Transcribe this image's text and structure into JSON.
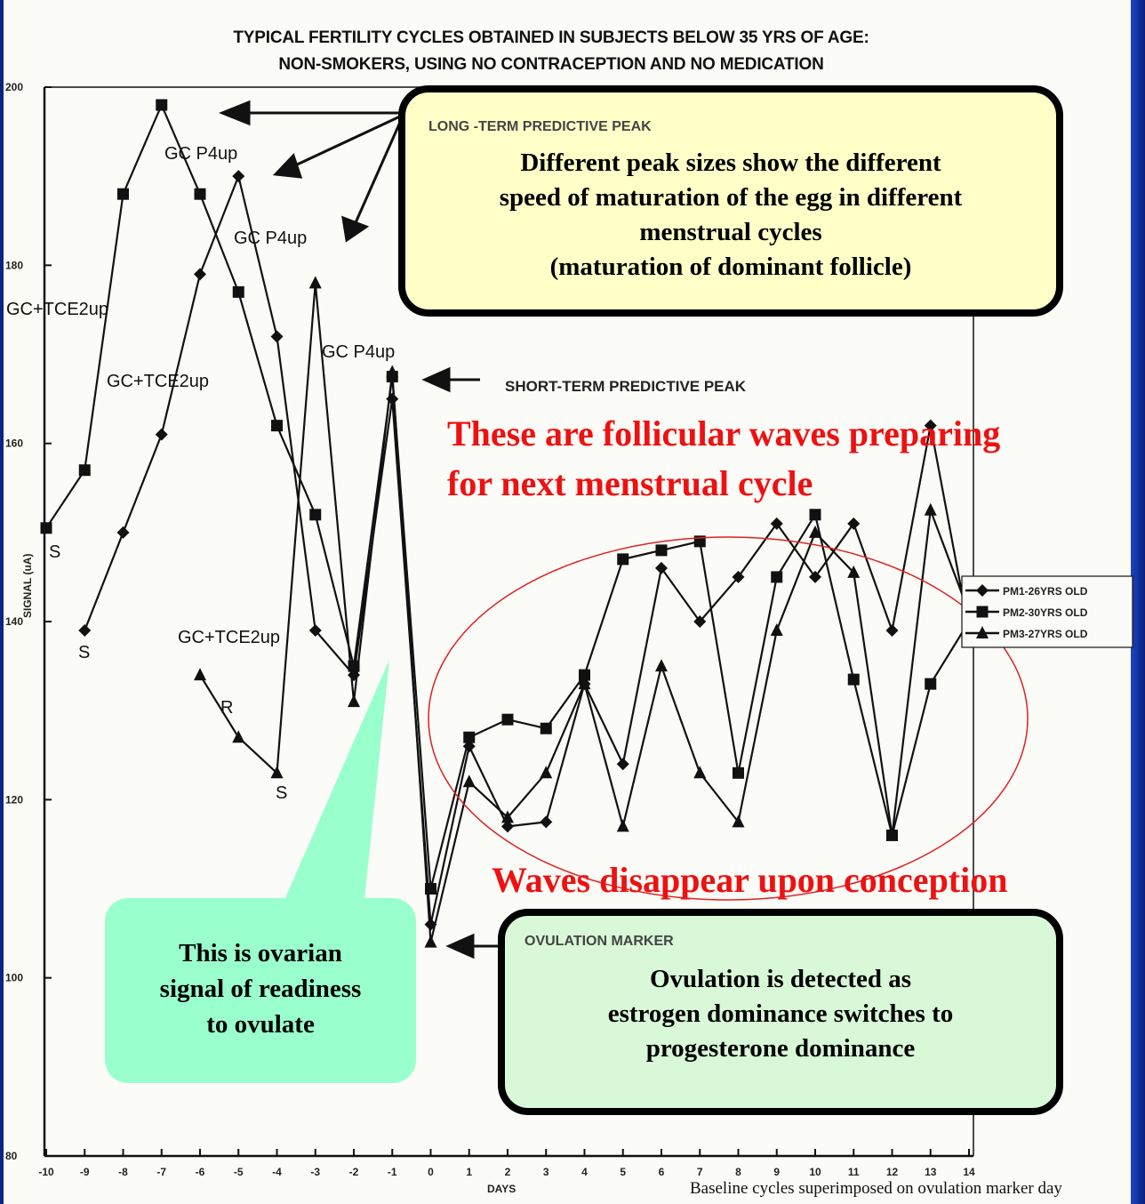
{
  "chart_data": {
    "type": "line",
    "title": "TYPICAL FERTILITY CYCLES OBTAINED IN SUBJECTS BELOW 35 YRS OF AGE:",
    "subtitle": "NON-SMOKERS, USING NO CONTRACEPTION AND NO MEDICATION",
    "xlabel": "DAYS",
    "ylabel": "SIGNAL (uA)",
    "xlim": [
      -10,
      14
    ],
    "ylim": [
      80,
      200
    ],
    "x_ticks": [
      -10,
      -9,
      -8,
      -7,
      -6,
      -5,
      -4,
      -3,
      -2,
      -1,
      0,
      1,
      2,
      3,
      4,
      5,
      6,
      7,
      8,
      9,
      10,
      11,
      12,
      13,
      14
    ],
    "y_ticks": [
      80,
      100,
      120,
      140,
      160,
      180,
      200
    ],
    "legend_position": "right",
    "series": [
      {
        "name": "PM1-26YRS OLD",
        "marker": "diamond",
        "x": [
          -9,
          -8,
          -7,
          -6,
          -5,
          -4,
          -3,
          -2,
          -1,
          0,
          1,
          2,
          3,
          4,
          5,
          6,
          7,
          8,
          9,
          10,
          11,
          12,
          13,
          14
        ],
        "values": [
          139,
          150,
          161,
          179,
          190,
          172,
          139,
          134,
          165,
          106,
          126,
          117,
          117.5,
          133,
          124,
          146,
          140,
          145,
          151,
          145,
          151,
          139,
          162,
          139
        ]
      },
      {
        "name": "PM2-30YRS OLD",
        "marker": "square",
        "x": [
          -10,
          -9,
          -8,
          -7,
          -6,
          -5,
          -4,
          -3,
          -2,
          -1,
          0,
          1,
          2,
          3,
          4,
          5,
          6,
          7,
          8,
          9,
          10,
          11,
          12,
          13,
          14
        ],
        "values": [
          150.5,
          157,
          188,
          198,
          188,
          177,
          162,
          152,
          135,
          167.5,
          110,
          127,
          129,
          128,
          134,
          147,
          148,
          149,
          123,
          145,
          152,
          133.5,
          116,
          133,
          140
        ]
      },
      {
        "name": "PM3-27YRS OLD",
        "marker": "triangle",
        "x": [
          -6,
          -5,
          -4,
          -3,
          -2,
          -1,
          0,
          1,
          2,
          3,
          4,
          5,
          6,
          7,
          8,
          9,
          10,
          11,
          12,
          13,
          14
        ],
        "values": [
          134,
          127,
          123,
          178,
          131,
          168,
          104,
          122,
          118,
          123,
          133,
          117,
          135,
          123,
          117.5,
          139,
          150,
          145.5,
          116,
          152.5,
          141
        ]
      }
    ]
  },
  "annotations": [
    {
      "text": "GC P4up"
    },
    {
      "text": "GC P4up"
    },
    {
      "text": "GC P4up"
    },
    {
      "text": "GC+TCE2up"
    },
    {
      "text": "GC+TCE2up"
    },
    {
      "text": "GC+TCE2up"
    },
    {
      "text": "S"
    },
    {
      "text": "S"
    },
    {
      "text": "S"
    },
    {
      "text": "R"
    }
  ],
  "short_term_label": "SHORT-TERM PREDICTIVE PEAK",
  "long_term_box": {
    "label": "LONG -TERM PREDICTIVE PEAK",
    "line1": "Different peak sizes show the different",
    "line2": "speed of maturation of the egg in different",
    "line3": "menstrual cycles",
    "line4": "(maturation of dominant follicle)",
    "color": "#ffffc8"
  },
  "follicular_text_1": "These are follicular waves preparing",
  "follicular_text_2": "for next menstrual cycle",
  "waves_text": "Waves disappear upon conception",
  "ovulation_box": {
    "label": "OVULATION MARKER",
    "line1": "Ovulation is detected as",
    "line2": "estrogen dominance switches to",
    "line3": "progesterone dominance",
    "color": "#d8f8d8"
  },
  "callout": {
    "line1": "This is ovarian",
    "line2": "signal of readiness",
    "line3": "to ovulate",
    "color": "#99ffcc"
  },
  "footer": "Baseline cycles superimposed on ovulation marker day",
  "accent_red": "#ee1111"
}
